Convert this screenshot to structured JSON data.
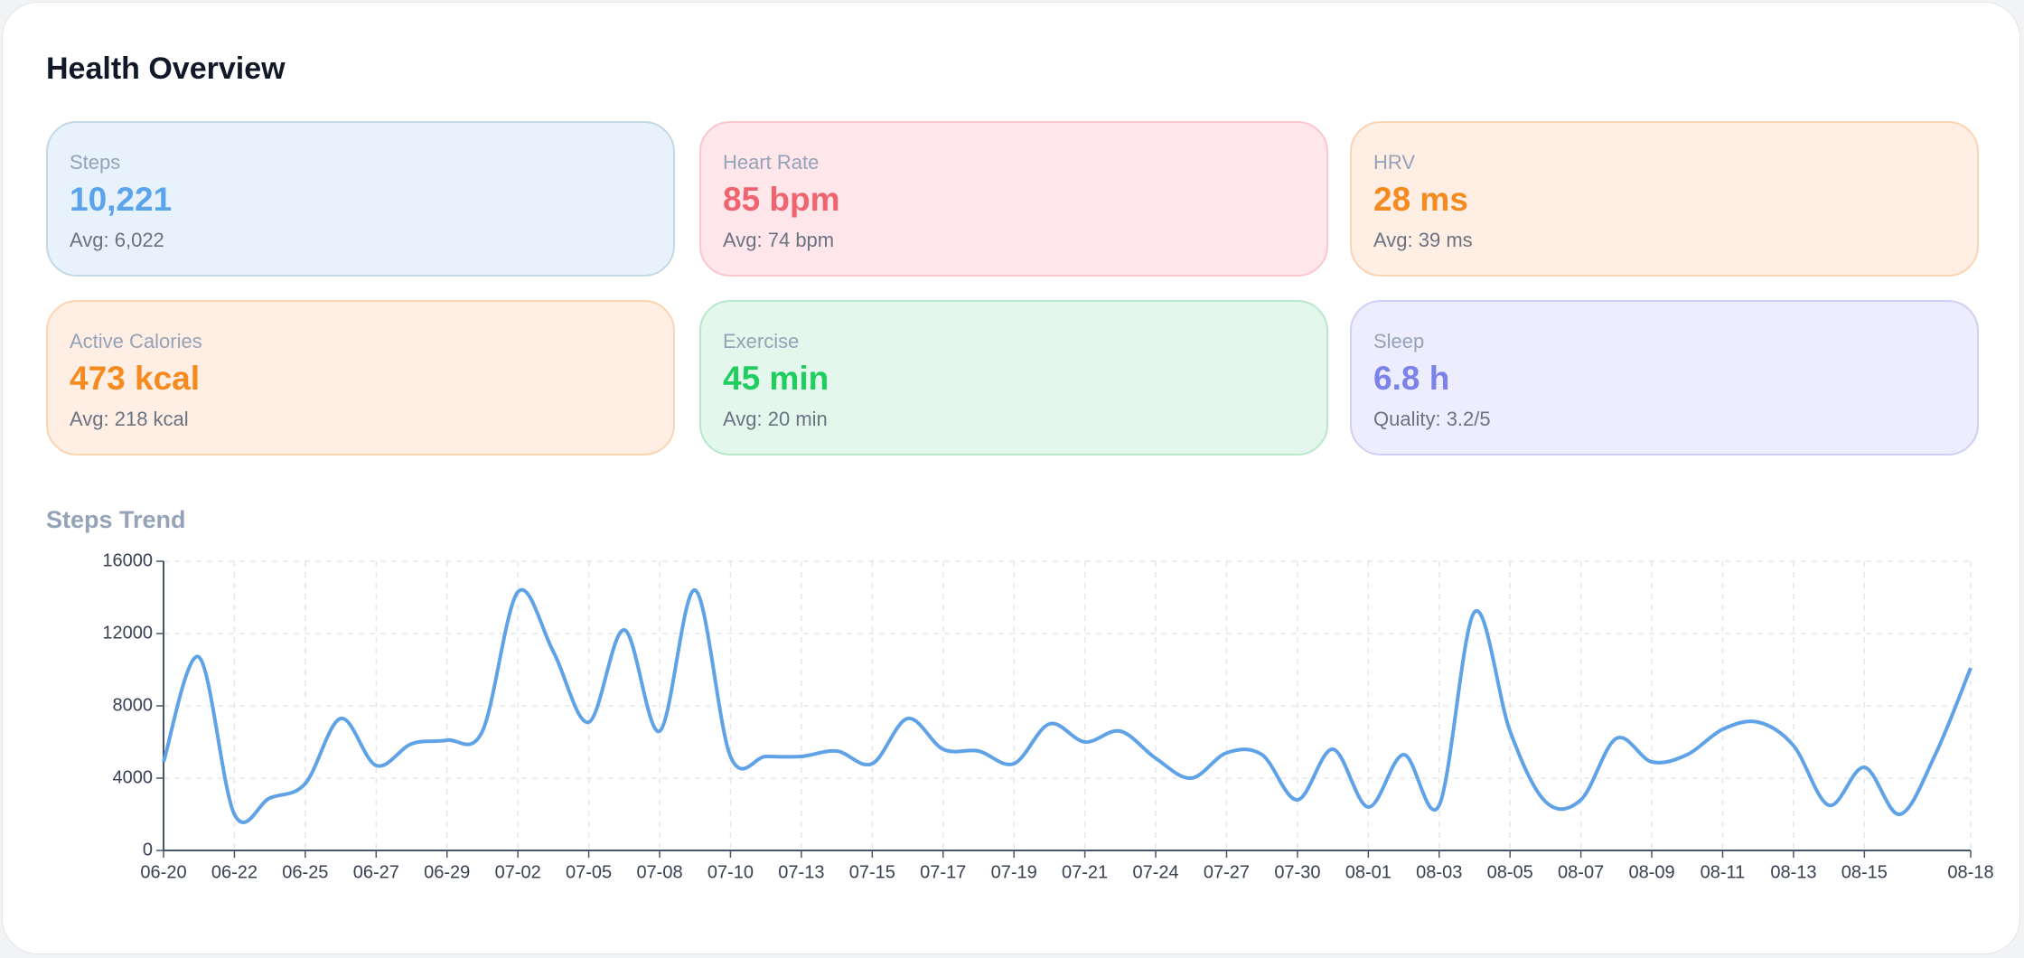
{
  "header": {
    "title": "Health Overview"
  },
  "cards": [
    {
      "label": "Steps",
      "value": "10,221",
      "sub": "Avg: 6,022"
    },
    {
      "label": "Heart Rate",
      "value": "85 bpm",
      "sub": "Avg: 74 bpm"
    },
    {
      "label": "HRV",
      "value": "28 ms",
      "sub": "Avg: 39 ms"
    },
    {
      "label": "Active Calories",
      "value": "473 kcal",
      "sub": "Avg: 218 kcal"
    },
    {
      "label": "Exercise",
      "value": "45 min",
      "sub": "Avg: 20 min"
    },
    {
      "label": "Sleep",
      "value": "6.8 h",
      "sub": "Quality: 3.2/5"
    }
  ],
  "chart_data": {
    "type": "line",
    "title": "Steps Trend",
    "categories": [
      "06-20",
      null,
      "06-22",
      null,
      "06-25",
      null,
      "06-27",
      null,
      "06-29",
      null,
      "07-02",
      null,
      "07-05",
      null,
      "07-08",
      null,
      "07-10",
      null,
      "07-13",
      null,
      "07-15",
      null,
      "07-17",
      null,
      "07-19",
      null,
      "07-21",
      null,
      "07-24",
      null,
      "07-27",
      null,
      "07-30",
      null,
      "08-01",
      null,
      "08-03",
      null,
      "08-05",
      null,
      "08-07",
      null,
      "08-09",
      null,
      "08-11",
      null,
      "08-13",
      null,
      "08-15",
      null,
      null,
      "08-18"
    ],
    "series": [
      {
        "name": "Steps",
        "color": "#5fa2e6",
        "values": [
          4900,
          10700,
          2000,
          2900,
          3700,
          7300,
          4700,
          5900,
          6100,
          6600,
          14300,
          11000,
          7100,
          12200,
          6600,
          14400,
          5200,
          5200,
          5200,
          5500,
          4800,
          7300,
          5600,
          5500,
          4800,
          7000,
          6000,
          6600,
          5100,
          4000,
          5400,
          5300,
          2800,
          5600,
          2400,
          5300,
          2500,
          13200,
          6600,
          2700,
          2800,
          6200,
          4900,
          5300,
          6700,
          7100,
          5800,
          2500,
          4600,
          2000,
          5300,
          10100
        ]
      }
    ],
    "ylim": [
      0,
      16000
    ],
    "yticks": [
      0,
      4000,
      8000,
      12000,
      16000
    ],
    "grid": true
  }
}
